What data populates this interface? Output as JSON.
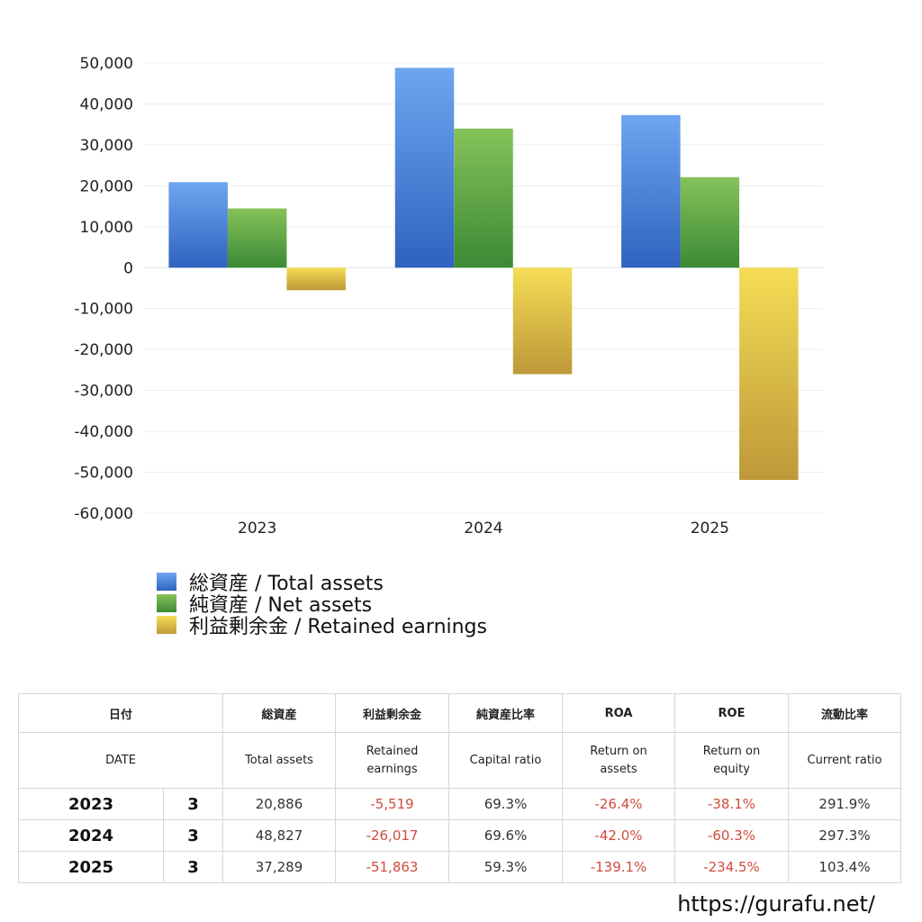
{
  "chart_data": {
    "type": "bar",
    "categories": [
      "2023",
      "2024",
      "2025"
    ],
    "series": [
      {
        "name": "総資産 / Total assets",
        "values": [
          20886,
          48827,
          37289
        ],
        "color": "#4a86db"
      },
      {
        "name": "純資産 / Net assets",
        "values": [
          14470,
          33983,
          22112
        ],
        "color": "#5aa84a"
      },
      {
        "name": "利益剰余金 / Retained earnings",
        "values": [
          -5519,
          -26017,
          -51863
        ],
        "color": "#d9bd45"
      }
    ],
    "ylim": [
      -60000,
      50000
    ],
    "yticks": [
      50000,
      40000,
      30000,
      20000,
      10000,
      0,
      -10000,
      -20000,
      -30000,
      -40000,
      -50000,
      -60000
    ],
    "ytick_labels": [
      "50,000",
      "40,000",
      "30,000",
      "20,000",
      "10,000",
      "0",
      "-10,000",
      "-20,000",
      "-30,000",
      "-40,000",
      "-50,000",
      "-60,000"
    ],
    "grid": true,
    "legend_position": "bottom-left"
  },
  "legend": [
    {
      "label": "総資産 / Total assets",
      "icon": "blue-swatch"
    },
    {
      "label": "純資産 / Net assets",
      "icon": "green-swatch"
    },
    {
      "label": "利益剰余金 / Retained earnings",
      "icon": "gold-swatch"
    }
  ],
  "table": {
    "headers_jp": [
      "日付",
      "総資産",
      "利益剰余金",
      "純資産比率",
      "ROA",
      "ROE",
      "流動比率"
    ],
    "headers_en": [
      "DATE",
      "Total assets",
      "Retained earnings",
      "Capital ratio",
      "Return on assets",
      "Return on equity",
      "Current ratio"
    ],
    "rows": [
      {
        "year": "2023",
        "month": "3",
        "total_assets": "20,886",
        "retained": "-5,519",
        "capital_ratio": "69.3%",
        "roa": "-26.4%",
        "roe": "-38.1%",
        "current_ratio": "291.9%"
      },
      {
        "year": "2024",
        "month": "3",
        "total_assets": "48,827",
        "retained": "-26,017",
        "capital_ratio": "69.6%",
        "roa": "-42.0%",
        "roe": "-60.3%",
        "current_ratio": "297.3%"
      },
      {
        "year": "2025",
        "month": "3",
        "total_assets": "37,289",
        "retained": "-51,863",
        "capital_ratio": "59.3%",
        "roa": "-139.1%",
        "roe": "-234.5%",
        "current_ratio": "103.4%"
      }
    ]
  },
  "site": "https://gurafu.net/"
}
